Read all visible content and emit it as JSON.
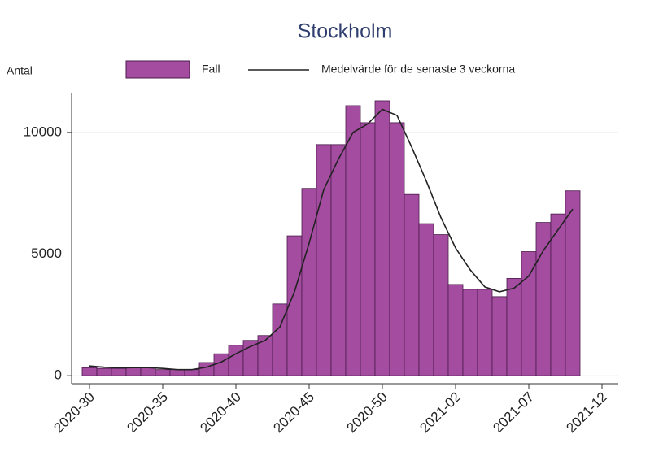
{
  "chart_data": {
    "type": "bar",
    "title": "Stockholm",
    "y_label": "Antal",
    "categories": [
      "2020-30",
      "2020-31",
      "2020-32",
      "2020-33",
      "2020-34",
      "2020-35",
      "2020-36",
      "2020-37",
      "2020-38",
      "2020-39",
      "2020-40",
      "2020-41",
      "2020-42",
      "2020-43",
      "2020-44",
      "2020-45",
      "2020-46",
      "2020-47",
      "2020-48",
      "2020-49",
      "2020-50",
      "2020-51",
      "2020-52",
      "2020-53",
      "2021-01",
      "2021-02",
      "2021-03",
      "2021-04",
      "2021-05",
      "2021-06",
      "2021-07",
      "2021-08",
      "2021-09",
      "2021-10",
      "2021-11",
      "2021-12"
    ],
    "series": [
      {
        "name": "Fall",
        "type": "bar",
        "color": "#a34ca0",
        "values": [
          330,
          300,
          300,
          350,
          350,
          250,
          250,
          250,
          540,
          900,
          1250,
          1450,
          1650,
          2950,
          5750,
          7700,
          9500,
          9500,
          11100,
          10400,
          11300,
          10400,
          7450,
          6250,
          5800,
          3750,
          3550,
          3550,
          3250,
          4000,
          5100,
          6300,
          6650,
          7600,
          null,
          null
        ]
      },
      {
        "name": "Medelvärde för de senaste 3 veckorna",
        "type": "line",
        "color": "#222222",
        "values": [
          400,
          350,
          320,
          330,
          330,
          300,
          250,
          250,
          350,
          560,
          900,
          1200,
          1450,
          2000,
          3450,
          5450,
          7650,
          8900,
          10000,
          10350,
          10950,
          10700,
          9400,
          8000,
          6500,
          5250,
          4350,
          3650,
          3450,
          3600,
          4100,
          5150,
          6000,
          6850,
          null,
          null
        ]
      }
    ],
    "xticks": [
      "2020-30",
      "2020-35",
      "2020-40",
      "2020-45",
      "2020-50",
      "2021-02",
      "2021-07",
      "2021-12"
    ],
    "ylim": [
      -330,
      11600
    ],
    "yticks": [
      0,
      5000,
      10000
    ],
    "grid": true,
    "legend": "top"
  }
}
